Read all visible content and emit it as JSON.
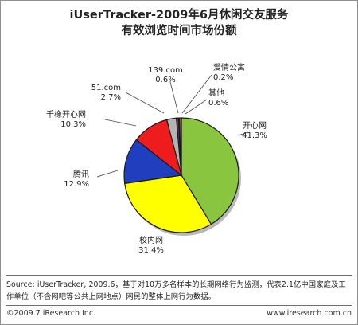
{
  "title_line1": "iUserTracker-2009年6月休闲交友服务",
  "title_line2": "有效浏览时间市场份额",
  "chart_data": {
    "type": "pie",
    "title": "iUserTracker-2009年6月休闲交友服务有效浏览时间市场份额",
    "slices": [
      {
        "label": "开心网",
        "value": 41.3,
        "display": "41.3%",
        "color": "#8ac540"
      },
      {
        "label": "校内网",
        "value": 31.4,
        "display": "31.4%",
        "color": "#ffff00"
      },
      {
        "label": "腾讯",
        "value": 12.9,
        "display": "12.9%",
        "color": "#1f3fbf"
      },
      {
        "label": "千橡开心网",
        "value": 10.3,
        "display": "10.3%",
        "color": "#ee1c1c"
      },
      {
        "label": "51.com",
        "value": 2.7,
        "display": "2.7%",
        "color": "#b4b4b4"
      },
      {
        "label": "139.com",
        "value": 0.6,
        "display": "0.6%",
        "color": "#6a2a9a"
      },
      {
        "label": "爱情公寓",
        "value": 0.2,
        "display": "0.2%",
        "color": "#eeeeee"
      },
      {
        "label": "其他",
        "value": 0.6,
        "display": "0.6%",
        "color": "#8a5a2a"
      }
    ]
  },
  "source_text": "Source: iUserTracker, 2009.6，基于对10万多名样本的长期网络行为监测，代表2.1亿中国家庭及工作单位（不含网吧等公共上网地点）网民的整体上网行为数据。",
  "footer_left": "©2009.7 iResearch Inc.",
  "footer_right": "www.iresearch.com.cn"
}
